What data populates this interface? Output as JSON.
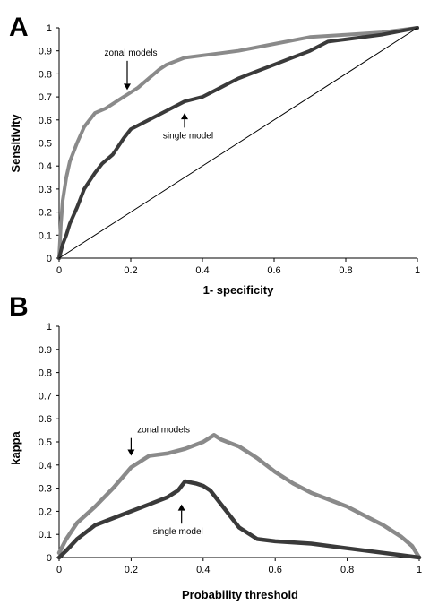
{
  "chart_data": [
    {
      "panel": "A",
      "type": "line",
      "xlabel": "1- specificity",
      "ylabel": "Sensitivity",
      "xlim": [
        0,
        1
      ],
      "ylim": [
        0,
        1
      ],
      "xticks": [
        "0",
        "0.2",
        "0.4",
        "0.6",
        "0.8",
        "1"
      ],
      "yticks": [
        "0",
        "0.1",
        "0.2",
        "0.3",
        "0.4",
        "0.5",
        "0.6",
        "0.7",
        "0.8",
        "0.9",
        "1"
      ],
      "grid": false,
      "series": [
        {
          "name": "zonal models",
          "color": "#8a8a8a",
          "x": [
            0,
            0.005,
            0.01,
            0.02,
            0.03,
            0.05,
            0.07,
            0.1,
            0.13,
            0.15,
            0.18,
            0.2,
            0.22,
            0.25,
            0.28,
            0.3,
            0.35,
            0.4,
            0.45,
            0.5,
            0.6,
            0.7,
            0.8,
            0.9,
            1.0
          ],
          "y": [
            0,
            0.15,
            0.25,
            0.35,
            0.42,
            0.5,
            0.57,
            0.63,
            0.65,
            0.67,
            0.7,
            0.72,
            0.74,
            0.78,
            0.82,
            0.84,
            0.87,
            0.88,
            0.89,
            0.9,
            0.93,
            0.96,
            0.97,
            0.98,
            1.0
          ]
        },
        {
          "name": "single model",
          "color": "#3a3a3a",
          "x": [
            0,
            0.01,
            0.02,
            0.03,
            0.05,
            0.07,
            0.1,
            0.12,
            0.15,
            0.18,
            0.2,
            0.25,
            0.3,
            0.35,
            0.4,
            0.45,
            0.5,
            0.55,
            0.6,
            0.65,
            0.7,
            0.75,
            0.8,
            0.9,
            1.0
          ],
          "y": [
            0,
            0.06,
            0.1,
            0.15,
            0.22,
            0.3,
            0.37,
            0.41,
            0.45,
            0.52,
            0.56,
            0.6,
            0.64,
            0.68,
            0.7,
            0.74,
            0.78,
            0.81,
            0.84,
            0.87,
            0.9,
            0.94,
            0.95,
            0.97,
            1.0
          ]
        },
        {
          "name": "",
          "color": "#000000",
          "x": [
            0,
            1
          ],
          "y": [
            0,
            1
          ]
        }
      ],
      "annotations": [
        {
          "text": "zonal models",
          "x": 0.2,
          "y": 0.88,
          "arrow_to": [
            0.19,
            0.73
          ]
        },
        {
          "text": "single model",
          "x": 0.36,
          "y": 0.52,
          "arrow_to": [
            0.35,
            0.63
          ]
        }
      ]
    },
    {
      "panel": "B",
      "type": "line",
      "xlabel": "Probability threshold",
      "ylabel": "kappa",
      "xlim": [
        0,
        1
      ],
      "ylim": [
        0,
        1
      ],
      "xticks": [
        "0",
        "0.2",
        "0.4",
        "0.6",
        "0.8",
        "1"
      ],
      "yticks": [
        "0",
        "0.1",
        "0.2",
        "0.3",
        "0.4",
        "0.5",
        "0.6",
        "0.7",
        "0.8",
        "0.9",
        "1"
      ],
      "grid": false,
      "series": [
        {
          "name": "zonal models",
          "color": "#8a8a8a",
          "x": [
            0,
            0.02,
            0.05,
            0.1,
            0.15,
            0.2,
            0.25,
            0.3,
            0.35,
            0.4,
            0.43,
            0.45,
            0.5,
            0.55,
            0.6,
            0.65,
            0.7,
            0.75,
            0.8,
            0.85,
            0.9,
            0.95,
            0.98,
            1.0
          ],
          "y": [
            0.02,
            0.08,
            0.15,
            0.22,
            0.3,
            0.39,
            0.44,
            0.45,
            0.47,
            0.5,
            0.53,
            0.51,
            0.48,
            0.43,
            0.37,
            0.32,
            0.28,
            0.25,
            0.22,
            0.18,
            0.14,
            0.09,
            0.05,
            0.0
          ]
        },
        {
          "name": "single model",
          "color": "#3a3a3a",
          "x": [
            0,
            0.02,
            0.05,
            0.1,
            0.15,
            0.2,
            0.25,
            0.3,
            0.33,
            0.35,
            0.38,
            0.4,
            0.42,
            0.45,
            0.5,
            0.55,
            0.6,
            0.7,
            0.8,
            0.9,
            0.95,
            1.0
          ],
          "y": [
            0.0,
            0.03,
            0.08,
            0.14,
            0.17,
            0.2,
            0.23,
            0.26,
            0.29,
            0.33,
            0.32,
            0.31,
            0.29,
            0.23,
            0.13,
            0.08,
            0.07,
            0.06,
            0.04,
            0.02,
            0.01,
            0.0
          ]
        }
      ],
      "annotations": [
        {
          "text": "zonal models",
          "x": 0.29,
          "y": 0.54,
          "arrow_to": [
            0.2,
            0.44
          ]
        },
        {
          "text": "single model",
          "x": 0.33,
          "y": 0.1,
          "arrow_to": [
            0.34,
            0.23
          ]
        }
      ]
    }
  ]
}
